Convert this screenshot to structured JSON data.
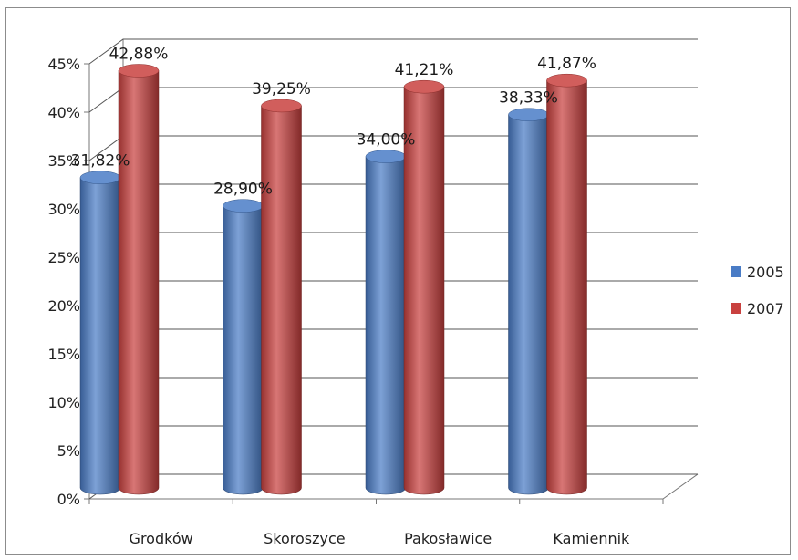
{
  "chart_data": {
    "type": "bar",
    "title": "",
    "xlabel": "",
    "ylabel": "",
    "categories": [
      "Grodków",
      "Skoroszyce",
      "Pakosławice",
      "Kamiennik"
    ],
    "series": [
      {
        "name": "2005",
        "color": "#4a7cc6",
        "values": [
          31.82,
          28.9,
          34.0,
          38.33
        ],
        "labels": [
          "31,82%",
          "28,90%",
          "34,00%",
          "38,33%"
        ]
      },
      {
        "name": "2007",
        "color": "#c9413f",
        "values": [
          42.88,
          39.25,
          41.21,
          41.87
        ],
        "labels": [
          "42,88%",
          "39,25%",
          "41,21%",
          "41,87%"
        ]
      }
    ],
    "ylim": [
      0,
      45
    ],
    "yticks": [
      "0%",
      "5%",
      "10%",
      "15%",
      "20%",
      "25%",
      "30%",
      "35%",
      "40%",
      "45%"
    ],
    "grid": true,
    "legend_position": "right",
    "style": "3d-cylinder"
  }
}
